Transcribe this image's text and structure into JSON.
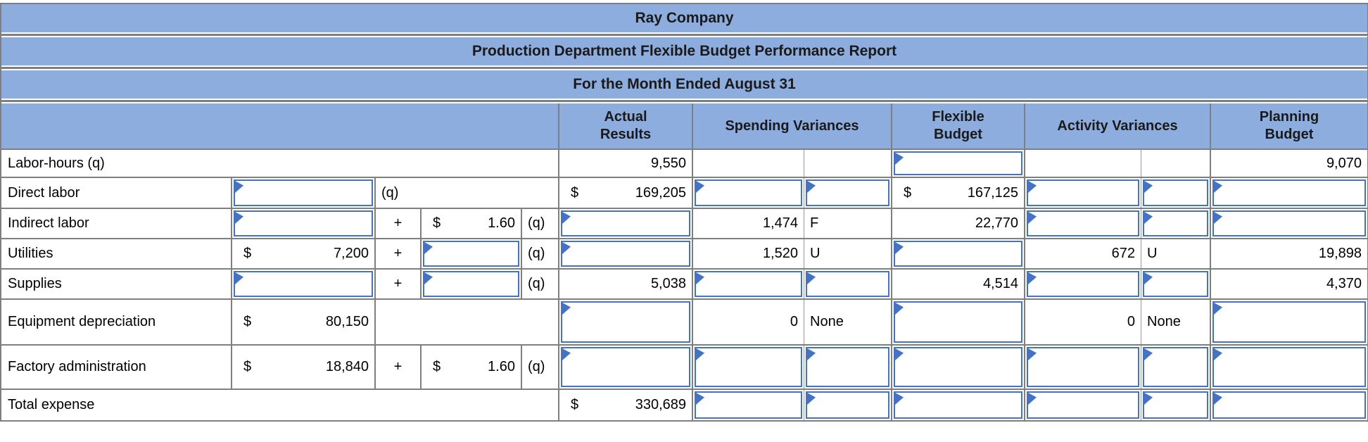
{
  "report": {
    "company": "Ray Company",
    "title": "Production Department Flexible Budget Performance Report",
    "period": "For the Month Ended August 31"
  },
  "columns": {
    "actual_results": "Actual Results",
    "spending_variances": "Spending Variances",
    "flexible_budget": "Flexible Budget",
    "activity_variances": "Activity Variances",
    "planning_budget": "Planning Budget"
  },
  "symbols": {
    "dollar": "$",
    "plus": "+",
    "q": "(q)"
  },
  "colors": {
    "header_fill": "#8CADDD",
    "grid_line": "#7f7f7f",
    "input_border": "#4472C4"
  },
  "rows": {
    "labor_hours": {
      "label": "Labor-hours (q)",
      "actual": "9,550",
      "planning": "9,070"
    },
    "direct_labor": {
      "label": "Direct labor",
      "actual": "169,205",
      "flexible": "167,125"
    },
    "indirect_labor": {
      "label": "Indirect labor",
      "rate": "1.60",
      "spending": "1,474",
      "spending_flag": "F",
      "flexible": "22,770"
    },
    "utilities": {
      "label": "Utilities",
      "fixed": "7,200",
      "spending": "1,520",
      "spending_flag": "U",
      "activity": "672",
      "activity_flag": "U",
      "planning": "19,898"
    },
    "supplies": {
      "label": "Supplies",
      "actual": "5,038",
      "flexible": "4,514",
      "planning": "4,370"
    },
    "equipment_depreciation": {
      "label": "Equipment depreciation",
      "fixed": "80,150",
      "spending": "0",
      "spending_flag": "None",
      "activity": "0",
      "activity_flag": "None"
    },
    "factory_administration": {
      "label": "Factory administration",
      "fixed": "18,840",
      "rate": "1.60"
    },
    "total_expense": {
      "label": "Total expense",
      "actual": "330,689"
    }
  }
}
